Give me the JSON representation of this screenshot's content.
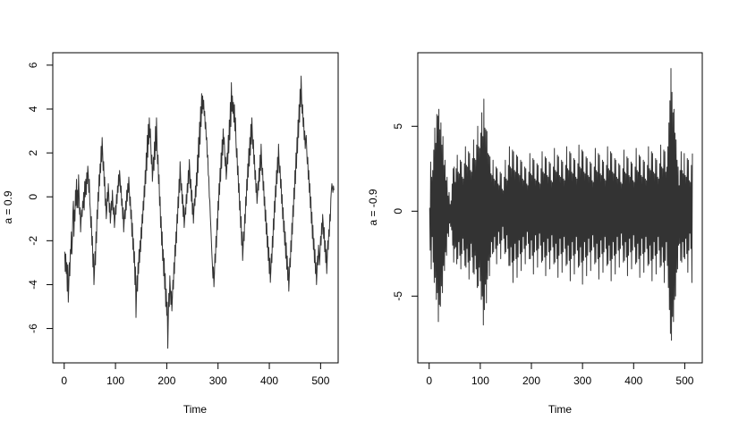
{
  "chart_data": [
    {
      "type": "line",
      "title": "",
      "xlabel": "Time",
      "ylabel": "a = 0.9",
      "xlim": [
        0,
        512
      ],
      "ylim": [
        -7,
        6
      ],
      "x_ticks": [
        0,
        100,
        200,
        300,
        400,
        500
      ],
      "x_tick_labels": [
        "0",
        "100",
        "200",
        "300",
        "400",
        "500"
      ],
      "y_ticks": [
        -6,
        -4,
        -2,
        0,
        2,
        4,
        6
      ],
      "y_tick_labels": [
        "-6",
        "-4",
        "-2",
        "0",
        "2",
        "4",
        "6"
      ],
      "grid": false,
      "series": [
        {
          "x_start": 1,
          "x_step": 1,
          "line_color": "#333333",
          "values": [
            -2.5,
            -3.4,
            -2.6,
            -3.5,
            -3.0,
            -4.3,
            -3.1,
            -4.8,
            -4.0,
            -3.0,
            -3.6,
            -2.4,
            -2.6,
            -1.6,
            -2.6,
            -1.8,
            -0.7,
            -0.2,
            -1.8,
            -0.6,
            -1.1,
            0.3,
            -0.4,
            0.8,
            -0.5,
            0.3,
            -0.5,
            1.0,
            0.1,
            -0.8,
            -0.5,
            -1.6,
            -1.0,
            -0.6,
            -0.9,
            -0.2,
            -0.5,
            0.2,
            -0.6,
            0.7,
            0.0,
            0.8,
            0.1,
            1.1,
            0.6,
            1.4,
            1.0,
            0.2,
            0.8,
            -0.3,
            -0.6,
            -1.4,
            -0.9,
            -2.2,
            -1.8,
            -3.2,
            -2.6,
            -4.0,
            -3.4,
            -2.5,
            -3.1,
            -1.6,
            -2.1,
            -0.6,
            -1.0,
            0.2,
            -0.2,
            1.0,
            0.5,
            1.5,
            1.1,
            2.3,
            1.6,
            2.7,
            2.0,
            1.2,
            1.6,
            0.5,
            0.9,
            -0.4,
            -0.1,
            -1.0,
            -0.6,
            0.2,
            -0.2,
            0.6,
            0.1,
            -0.7,
            -0.3,
            -1.2,
            -0.8,
            -0.2,
            -0.6,
            0.3,
            -0.3,
            -0.8,
            -0.5,
            -1.4,
            -1.0,
            -0.4,
            -0.8,
            0.1,
            -0.3,
            0.5,
            0.2,
            1.0,
            0.5,
            1.2,
            0.8,
            0.2,
            0.5,
            -0.4,
            -0.1,
            -1.0,
            -0.5,
            -1.6,
            -1.1,
            -0.6,
            -1.0,
            -0.2,
            -0.6,
            0.3,
            -0.2,
            0.6,
            0.2,
            0.9,
            0.3,
            -0.4,
            0.0,
            -1.0,
            -0.6,
            -1.8,
            -1.2,
            -2.4,
            -1.9,
            -3.0,
            -2.5,
            -4.0,
            -3.2,
            -5.5,
            -4.4,
            -3.6,
            -4.3,
            -3.0,
            -3.5,
            -2.4,
            -3.0,
            -2.0,
            -2.5,
            -1.4,
            -1.9,
            -0.8,
            -1.2,
            -0.2,
            -0.6,
            0.5,
            0.0,
            1.2,
            0.6,
            2.0,
            1.2,
            2.8,
            1.8,
            3.3,
            2.4,
            3.6,
            2.7,
            3.1,
            2.3,
            1.5,
            1.9,
            0.7,
            1.2,
            1.8,
            1.2,
            2.5,
            1.7,
            3.2,
            2.1,
            3.6,
            2.4,
            1.5,
            1.9,
            0.6,
            1.0,
            -0.4,
            0.0,
            -1.4,
            -0.9,
            -2.2,
            -1.6,
            -2.9,
            -2.4,
            -3.6,
            -2.8,
            -4.2,
            -3.5,
            -5.0,
            -4.2,
            -5.4,
            -4.8,
            -6.9,
            -5.6,
            -4.4,
            -5.0,
            -3.6,
            -4.2,
            -4.9,
            -4.3,
            -5.2,
            -4.6,
            -3.8,
            -4.2,
            -3.0,
            -3.5,
            -2.2,
            -2.7,
            -1.6,
            -2.1,
            -0.8,
            -1.2,
            0.0,
            -0.5,
            0.8,
            0.2,
            1.6,
            0.9,
            0.3,
            0.6,
            -0.3,
            0.1,
            -0.9,
            -0.4,
            -1.4,
            -1.0,
            -0.5,
            -0.8,
            0.1,
            -0.3,
            0.6,
            0.2,
            1.2,
            0.6,
            1.7,
            1.1,
            0.4,
            0.8,
            -0.2,
            0.3,
            -0.8,
            -0.3,
            -1.2,
            -0.6,
            -0.1,
            -0.4,
            0.5,
            0.0,
            1.1,
            0.5,
            1.9,
            1.1,
            2.7,
            1.8,
            3.4,
            2.4,
            4.1,
            3.2,
            4.7,
            3.8,
            4.6,
            4.0,
            4.4,
            3.7,
            3.9,
            3.1,
            3.4,
            2.6,
            2.7,
            1.8,
            1.9,
            1.0,
            0.9,
            0.0,
            -0.2,
            -0.9,
            -1.4,
            -2.0,
            -2.6,
            -3.1,
            -3.7,
            -3.2,
            -4.1,
            -3.5,
            -2.6,
            -3.0,
            -1.8,
            -2.3,
            -1.0,
            -1.5,
            -0.2,
            -0.6,
            0.6,
            0.1,
            1.3,
            0.7,
            2.0,
            1.3,
            2.6,
            1.9,
            3.1,
            2.4,
            2.7,
            2.0,
            1.4,
            1.8,
            0.8,
            1.2,
            2.0,
            1.5,
            2.8,
            2.0,
            3.5,
            2.6,
            4.3,
            3.2,
            5.2,
            3.9,
            4.6,
            3.8,
            4.3,
            3.4,
            4.2,
            3.0,
            3.6,
            2.5,
            1.8,
            2.2,
            1.0,
            1.4,
            0.2,
            0.6,
            -0.6,
            -0.2,
            -1.4,
            -0.9,
            -2.2,
            -1.6,
            -2.9,
            -2.3,
            -1.6,
            -2.0,
            -0.8,
            -1.2,
            0.0,
            -0.4,
            0.8,
            0.3,
            1.5,
            0.9,
            2.2,
            1.4,
            2.7,
            1.9,
            3.3,
            2.4,
            3.6,
            2.8,
            2.2,
            2.6,
            1.5,
            1.9,
            0.8,
            1.2,
            0.2,
            0.6,
            -0.3,
            0.1,
            0.7,
            0.3,
            1.3,
            0.7,
            1.9,
            1.2,
            2.4,
            1.6,
            1.0,
            1.3,
            0.3,
            0.7,
            -0.4,
            0.0,
            -1.1,
            -0.6,
            -1.7,
            -1.2,
            -2.3,
            -1.8,
            -2.9,
            -2.3,
            -3.5,
            -2.8,
            -3.9,
            -3.4,
            -2.6,
            -3.0,
            -1.8,
            -2.3,
            -1.0,
            -1.5,
            -0.2,
            -0.7,
            0.5,
            0.0,
            1.2,
            0.6,
            1.8,
            1.1,
            2.4,
            1.6,
            1.1,
            1.4,
            0.4,
            0.8,
            -0.3,
            0.1,
            -1.0,
            -0.5,
            -1.6,
            -1.1,
            -2.2,
            -1.6,
            -2.8,
            -2.1,
            -3.3,
            -2.7,
            -3.8,
            -3.2,
            -4.3,
            -3.6,
            -2.8,
            -3.2,
            -2.0,
            -2.5,
            -1.2,
            -1.7,
            -0.4,
            -0.9,
            0.4,
            -0.1,
            1.2,
            0.6,
            2.0,
            1.3,
            2.7,
            2.0,
            3.5,
            2.7,
            4.2,
            3.4,
            4.9,
            4.1,
            5.5,
            4.5,
            3.8,
            4.2,
            3.2,
            3.6,
            2.6,
            3.0,
            2.2,
            2.6,
            2.8,
            2.1,
            1.5,
            1.8,
            0.8,
            1.2,
            0.2,
            0.6,
            -0.5,
            0.0,
            -1.2,
            -0.7,
            -1.9,
            -1.3,
            -2.4,
            -1.9,
            -3.0,
            -2.4,
            -3.5,
            -3.0,
            -4.0,
            -3.4,
            -2.7,
            -3.1,
            -2.2,
            -2.6,
            -3.1,
            -2.5,
            -1.8,
            -2.2,
            -1.2,
            -1.7,
            -0.8,
            -1.2,
            -1.9,
            -1.4,
            -2.5,
            -2.0,
            -3.0,
            -2.4,
            -3.5,
            -2.8,
            -2.0,
            -2.4,
            -1.5,
            -1.8,
            -0.8,
            -1.1,
            -0.1,
            0.3,
            0.6,
            0.4,
            0.2,
            0.5,
            0.3
          ]
        }
      ]
    },
    {
      "type": "line",
      "title": "",
      "xlabel": "Time",
      "ylabel": "a = -0.9",
      "xlim": [
        0,
        512
      ],
      "ylim": [
        -8.2,
        8.6
      ],
      "x_ticks": [
        0,
        100,
        200,
        300,
        400,
        500
      ],
      "x_tick_labels": [
        "0",
        "100",
        "200",
        "300",
        "400",
        "500"
      ],
      "y_ticks": [
        -5,
        0,
        5
      ],
      "y_tick_labels": [
        "-5",
        "0",
        "5"
      ],
      "grid": false,
      "series": [
        {
          "x_start": 1,
          "x_step": 1,
          "line_color": "#333333",
          "values": [
            0.2,
            -2.3,
            2.9,
            -3.4,
            2.0,
            -1.5,
            2.4,
            -3.0,
            3.6,
            -4.2,
            4.9,
            -3.9,
            4.0,
            -5.2,
            5.7,
            -4.8,
            5.6,
            -6.5,
            6.0,
            -5.5,
            4.8,
            -5.6,
            5.2,
            -4.4,
            3.9,
            -4.8,
            4.4,
            -3.2,
            2.7,
            -3.5,
            3.0,
            -2.4,
            1.8,
            -2.6,
            2.0,
            -1.3,
            0.9,
            -1.5,
            1.1,
            -0.7,
            0.4,
            -0.9,
            0.6,
            -1.1,
            1.6,
            -2.0,
            2.5,
            -3.0,
            2.6,
            -2.2,
            1.7,
            -2.1,
            2.5,
            -3.1,
            3.3,
            -2.8,
            2.3,
            -1.8,
            2.2,
            -2.6,
            3.0,
            -3.4,
            2.9,
            -2.5,
            2.0,
            -1.6,
            1.9,
            -2.3,
            2.8,
            -3.2,
            3.8,
            -3.3,
            2.7,
            -2.2,
            2.6,
            -3.0,
            3.5,
            -4.0,
            3.4,
            -2.9,
            2.4,
            -1.9,
            2.3,
            -2.7,
            3.1,
            -3.6,
            4.2,
            -3.7,
            3.1,
            -2.6,
            3.0,
            -3.4,
            3.9,
            -4.5,
            5.0,
            -4.4,
            3.8,
            -3.3,
            3.7,
            -4.1,
            4.6,
            -5.2,
            5.8,
            -5.0,
            4.4,
            -6.7,
            6.6,
            -5.8,
            4.9,
            -4.3,
            4.8,
            -5.4,
            4.7,
            -4.0,
            3.4,
            -2.9,
            3.3,
            -3.8,
            3.2,
            -2.7,
            2.2,
            -1.8,
            2.1,
            -2.5,
            3.0,
            -2.4,
            1.9,
            -1.5,
            1.8,
            -2.2,
            2.6,
            -3.1,
            2.5,
            -2.0,
            1.6,
            -1.2,
            1.5,
            -1.9,
            2.3,
            -2.8,
            2.2,
            -1.7,
            1.3,
            -0.9,
            1.2,
            -1.6,
            2.0,
            -2.5,
            3.0,
            -2.4,
            1.9,
            -1.4,
            1.8,
            -2.2,
            2.7,
            -3.2,
            3.8,
            -3.2,
            2.6,
            -2.1,
            2.5,
            -3.0,
            3.6,
            -4.2,
            3.5,
            -2.9,
            2.4,
            -1.9,
            2.3,
            -2.8,
            3.3,
            -3.9,
            3.2,
            -2.7,
            2.2,
            -1.7,
            2.1,
            -2.5,
            3.0,
            -3.5,
            2.9,
            -2.4,
            1.9,
            -1.5,
            1.8,
            -2.2,
            2.6,
            -3.1,
            2.5,
            -2.0,
            1.6,
            -1.2,
            1.5,
            -1.9,
            2.3,
            -2.8,
            3.4,
            -2.8,
            2.2,
            -1.7,
            2.1,
            -2.6,
            3.1,
            -3.7,
            3.0,
            -2.4,
            1.9,
            -1.4,
            1.8,
            -2.3,
            2.8,
            -3.3,
            2.7,
            -2.2,
            1.7,
            -1.3,
            1.6,
            -2.0,
            2.5,
            -3.0,
            3.5,
            -2.9,
            2.3,
            -1.8,
            2.2,
            -2.7,
            3.2,
            -3.8,
            3.1,
            -2.6,
            2.1,
            -1.6,
            2.0,
            -2.4,
            2.9,
            -3.4,
            2.8,
            -2.3,
            1.8,
            -1.4,
            1.7,
            -2.1,
            2.6,
            -3.1,
            3.7,
            -3.0,
            2.4,
            -1.9,
            2.3,
            -2.8,
            3.3,
            -3.9,
            3.2,
            -2.6,
            2.1,
            -1.6,
            2.0,
            -2.5,
            3.0,
            -3.6,
            2.9,
            -2.4,
            1.9,
            -1.5,
            1.8,
            -2.2,
            2.7,
            -3.2,
            3.8,
            -3.1,
            2.5,
            -2.0,
            2.4,
            -2.9,
            3.5,
            -4.1,
            3.4,
            -2.8,
            2.3,
            -1.8,
            2.2,
            -2.6,
            3.1,
            -3.7,
            3.0,
            -2.5,
            2.0,
            -1.5,
            1.9,
            -2.3,
            2.8,
            -3.3,
            3.9,
            -3.2,
            2.6,
            -2.1,
            2.5,
            -3.0,
            3.6,
            -4.3,
            3.5,
            -2.9,
            2.3,
            -1.8,
            2.2,
            -2.7,
            3.2,
            -3.8,
            3.1,
            -2.6,
            2.1,
            -1.6,
            2.0,
            -2.4,
            2.9,
            -3.5,
            2.8,
            -2.3,
            1.8,
            -1.4,
            1.7,
            -2.1,
            2.6,
            -3.1,
            3.7,
            -3.0,
            2.4,
            -1.9,
            2.3,
            -2.8,
            3.4,
            -4.0,
            3.3,
            -2.7,
            2.2,
            -1.7,
            2.1,
            -2.5,
            3.0,
            -3.6,
            2.9,
            -2.4,
            1.9,
            -1.5,
            1.8,
            -2.2,
            2.7,
            -3.2,
            3.8,
            -3.1,
            2.5,
            -2.0,
            2.4,
            -2.9,
            3.5,
            -4.1,
            3.4,
            -2.8,
            2.3,
            -1.8,
            2.2,
            -2.6,
            3.1,
            -3.7,
            3.0,
            -2.5,
            2.0,
            -1.5,
            1.9,
            -2.3,
            2.8,
            -3.3,
            2.7,
            -2.2,
            1.7,
            -1.3,
            1.6,
            -2.0,
            2.5,
            -3.0,
            3.6,
            -2.9,
            2.3,
            -1.8,
            2.2,
            -2.7,
            3.2,
            -3.8,
            3.1,
            -2.6,
            2.1,
            -1.6,
            2.0,
            -2.4,
            2.9,
            -3.4,
            2.8,
            -2.3,
            1.8,
            -1.4,
            1.7,
            -2.1,
            2.6,
            -3.1,
            3.7,
            -3.0,
            2.4,
            -1.9,
            2.3,
            -2.8,
            3.3,
            -3.9,
            3.2,
            -2.6,
            2.1,
            -1.6,
            2.0,
            -2.5,
            3.0,
            -3.6,
            2.9,
            -2.4,
            1.9,
            -1.5,
            1.8,
            -2.2,
            2.7,
            -3.2,
            3.8,
            -3.1,
            2.5,
            -2.0,
            2.4,
            -2.9,
            3.5,
            -4.1,
            3.4,
            -2.8,
            2.3,
            -1.8,
            2.2,
            -2.6,
            3.1,
            -3.7,
            3.0,
            -2.5,
            2.0,
            -1.5,
            1.9,
            -2.3,
            2.8,
            -3.3,
            3.9,
            -3.2,
            2.6,
            -2.1,
            2.5,
            -3.0,
            3.6,
            -4.2,
            3.5,
            -2.9,
            2.3,
            -1.8,
            2.6,
            -3.2,
            3.8,
            -4.5,
            5.2,
            -5.8,
            6.5,
            -7.2,
            8.4,
            -7.6,
            7.0,
            -6.2,
            5.8,
            -6.5,
            6.0,
            -5.2,
            4.6,
            -5.0,
            4.2,
            -3.6,
            3.0,
            -3.4,
            2.6,
            -2.0,
            1.5,
            -1.9,
            2.4,
            -2.9,
            3.5,
            -3.0,
            2.4,
            -1.8,
            2.2,
            -2.7,
            3.4,
            -2.8,
            2.1,
            -1.6,
            2.0,
            -2.5,
            3.1,
            -3.6,
            3.0,
            -2.3,
            1.8,
            -1.3,
            1.7,
            -2.2,
            2.7,
            -4.2,
            3.4
          ]
        }
      ]
    }
  ]
}
